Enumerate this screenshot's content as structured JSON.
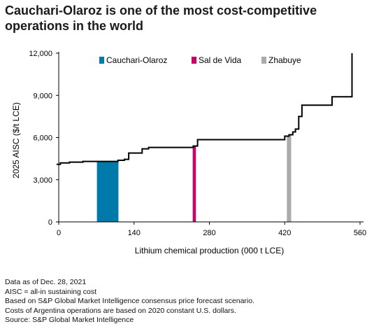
{
  "title_lines": [
    "Cauchari-Olaroz is one of the most cost-competitive",
    "operations in the world"
  ],
  "notes": [
    "Data as of Dec. 28, 2021",
    "AISC = all-in sustaining cost",
    "Based on S&P Global Market Intelligence consensus price forecast scenario.",
    "Costs of Argentina operations are based on 2020 constant U.S. dollars.",
    "Source: S&P Global Market Intelligence"
  ],
  "chart_data": {
    "type": "step-area",
    "xlabel": "Lithium chemical production (000 t LCE)",
    "ylabel": "2025 AISC ($/t LCE)",
    "xlim": [
      0,
      560
    ],
    "ylim": [
      0,
      12000
    ],
    "x_ticks": [
      0,
      140,
      280,
      420,
      560
    ],
    "x_tick_labels": [
      "0",
      "140",
      "280",
      "420",
      "560"
    ],
    "y_ticks": [
      0,
      3000,
      6000,
      9000,
      12000
    ],
    "y_tick_labels": [
      "0",
      "3,000",
      "6,000",
      "9,000",
      "12,000"
    ],
    "grid": false,
    "legend_position": "top",
    "cost_curve": [
      [
        -4,
        4100
      ],
      [
        3,
        4100
      ],
      [
        3,
        4200
      ],
      [
        20,
        4200
      ],
      [
        20,
        4250
      ],
      [
        45,
        4250
      ],
      [
        45,
        4300
      ],
      [
        110,
        4300
      ],
      [
        110,
        4380
      ],
      [
        122,
        4380
      ],
      [
        122,
        4450
      ],
      [
        130,
        4450
      ],
      [
        130,
        4900
      ],
      [
        155,
        4900
      ],
      [
        155,
        5200
      ],
      [
        167,
        5200
      ],
      [
        167,
        5300
      ],
      [
        250,
        5300
      ],
      [
        250,
        5400
      ],
      [
        258,
        5400
      ],
      [
        258,
        5850
      ],
      [
        420,
        5850
      ],
      [
        420,
        6100
      ],
      [
        428,
        6100
      ],
      [
        428,
        6200
      ],
      [
        435,
        6200
      ],
      [
        435,
        6400
      ],
      [
        440,
        6400
      ],
      [
        440,
        6600
      ],
      [
        446,
        6600
      ],
      [
        446,
        7500
      ],
      [
        452,
        7500
      ],
      [
        452,
        8300
      ],
      [
        508,
        8300
      ],
      [
        508,
        8900
      ],
      [
        545,
        8900
      ],
      [
        545,
        12000
      ]
    ],
    "series": [
      {
        "name": "Cauchari-Olaroz",
        "color": "#0079ab",
        "x_start": 71,
        "x_end": 111,
        "value": 4300
      },
      {
        "name": "Sal de Vida",
        "color": "#c7006b",
        "x_start": 249,
        "x_end": 255,
        "value": 5400
      },
      {
        "name": "Zhabuye",
        "color": "#a9abad",
        "x_start": 424,
        "x_end": 432,
        "value": 6150
      }
    ]
  }
}
